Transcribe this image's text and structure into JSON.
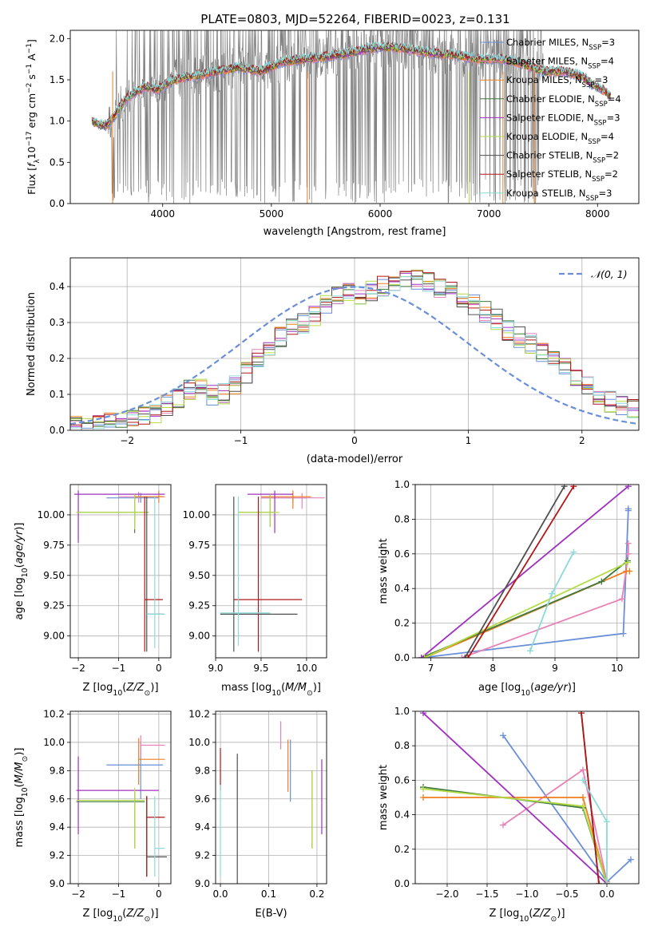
{
  "title": "PLATE=0803, MJD=52264, FIBERID=0023, z=0.131",
  "colors": {
    "cm": "#6a8fd8",
    "sm": "#e881b5",
    "km": "#f07d1e",
    "ce": "#3e7a3e",
    "se": "#a030c0",
    "ke": "#b5dc45",
    "cs": "#505050",
    "ss": "#b01818",
    "ks": "#8adada",
    "grid": "#b0b0b0",
    "noise": "#808080"
  },
  "legend": {
    "spectrum": [
      {
        "key": "cm",
        "pre": "Chabrier MILES, N",
        "sub": "SSP",
        "post": "=3"
      },
      {
        "key": "sm",
        "pre": "Salpeter MILES, N",
        "sub": "SSP",
        "post": "=4"
      },
      {
        "key": "km",
        "pre": "Kroupa MILES, N",
        "sub": "SSP",
        "post": "=3"
      },
      {
        "key": "ce",
        "pre": "Chabrier ELODIE, N",
        "sub": "SSP",
        "post": "=4"
      },
      {
        "key": "se",
        "pre": "Salpeter ELODIE, N",
        "sub": "SSP",
        "post": "=3"
      },
      {
        "key": "ke",
        "pre": "Kroupa ELODIE, N",
        "sub": "SSP",
        "post": "=4"
      },
      {
        "key": "cs",
        "pre": "Chabrier STELIB, N",
        "sub": "SSP",
        "post": "=2"
      },
      {
        "key": "ss",
        "pre": "Salpeter STELIB, N",
        "sub": "SSP",
        "post": "=2"
      },
      {
        "key": "ks",
        "pre": "Kroupa STELIB, N",
        "sub": "SSP",
        "post": "=3"
      }
    ],
    "residuals": "𝒩(0, 1)"
  },
  "chart_data": [
    {
      "type": "line",
      "name": "spectrum",
      "xlabel": "wavelength [Angstrom, rest frame]",
      "ylabel_parts": [
        "Flux [",
        "f",
        "λ",
        "10",
        "−17",
        " erg cm",
        "−2",
        " s",
        "−1",
        " A",
        "−1",
        "]"
      ],
      "xlim": [
        3150,
        8380
      ],
      "ylim": [
        0,
        2.1
      ],
      "xticks": [
        4000,
        5000,
        6000,
        7000,
        8000
      ],
      "yticks": [
        0.0,
        0.5,
        1.0,
        1.5,
        2.0
      ],
      "continuum": {
        "x": [
          3350,
          3420,
          3480,
          3550,
          3650,
          3750,
          3850,
          3950,
          4100,
          4300,
          4500,
          4700,
          4900,
          5100,
          5300,
          5500,
          5700,
          5900,
          6100,
          6300,
          6500,
          6700,
          6900,
          7100,
          7300,
          7500,
          7700,
          7850,
          7950,
          8050,
          8120
        ],
        "y": [
          1.0,
          0.95,
          0.95,
          1.05,
          1.25,
          1.35,
          1.42,
          1.38,
          1.5,
          1.55,
          1.6,
          1.65,
          1.6,
          1.72,
          1.75,
          1.78,
          1.82,
          1.88,
          1.9,
          1.86,
          1.82,
          1.8,
          1.75,
          1.75,
          1.7,
          1.6,
          1.6,
          1.55,
          1.45,
          1.38,
          1.3
        ]
      },
      "noise_range": [
        3500,
        7500
      ]
    },
    {
      "type": "bar",
      "name": "residual-histograms",
      "xlabel": "(data-model)/error",
      "ylabel": "Normed distribution",
      "xlim": [
        -2.5,
        2.5
      ],
      "ylim": [
        0,
        0.48
      ],
      "xticks": [
        -2,
        -1,
        0,
        1,
        2
      ],
      "yticks": [
        0.0,
        0.1,
        0.2,
        0.3,
        0.4
      ],
      "bin_width": 0.1,
      "base_hist": [
        0.01,
        0.01,
        0.015,
        0.02,
        0.025,
        0.03,
        0.04,
        0.05,
        0.07,
        0.09,
        0.11,
        0.12,
        0.1,
        0.1,
        0.13,
        0.16,
        0.2,
        0.23,
        0.26,
        0.28,
        0.3,
        0.32,
        0.35,
        0.37,
        0.38,
        0.38,
        0.39,
        0.4,
        0.41,
        0.42,
        0.42,
        0.41,
        0.4,
        0.39,
        0.37,
        0.35,
        0.33,
        0.31,
        0.28,
        0.26,
        0.24,
        0.22,
        0.2,
        0.18,
        0.15,
        0.12,
        0.1,
        0.08,
        0.07,
        0.06
      ],
      "gaussian": {
        "mu": 0,
        "sigma": 1
      }
    },
    {
      "type": "scatter",
      "name": "age-vs-metallicity",
      "xlabel": "Z [log10(Z/Z⊙)]",
      "ylabel": "age [log10(age/yr)]",
      "xlim": [
        -2.2,
        0.3
      ],
      "ylim": [
        8.82,
        10.25
      ],
      "xticks": [
        -2,
        -1,
        0
      ],
      "yticks": [
        9.0,
        9.25,
        9.5,
        9.75,
        10.0
      ],
      "points": [
        {
          "key": "cm",
          "x": -0.45,
          "xe": [
            -1.3,
            0.0
          ],
          "y": 10.14,
          "ye": [
            10.1,
            10.18
          ]
        },
        {
          "key": "sm",
          "x": -0.5,
          "xe": [
            -1.0,
            0.1
          ],
          "y": 10.15,
          "ye": [
            10.1,
            10.19
          ]
        },
        {
          "key": "km",
          "x": 0.0,
          "xe": [
            -0.6,
            0.15
          ],
          "y": 10.15,
          "ye": [
            10.1,
            10.2
          ]
        },
        {
          "key": "ce",
          "x": -0.6,
          "xe": [
            -2.05,
            -0.25
          ],
          "y": 10.02,
          "ye": [
            9.85,
            10.17
          ]
        },
        {
          "key": "se",
          "x": -2.0,
          "xe": [
            -2.1,
            0.15
          ],
          "y": 10.17,
          "ye": [
            9.77,
            10.2
          ]
        },
        {
          "key": "ke",
          "x": -0.6,
          "xe": [
            -2.05,
            -0.25
          ],
          "y": 10.02,
          "ye": [
            9.88,
            10.17
          ]
        },
        {
          "key": "cs",
          "x": -0.3,
          "xe": [
            -0.3,
            0.12
          ],
          "y": 9.18,
          "ye": [
            8.87,
            10.15
          ]
        },
        {
          "key": "ss",
          "x": -0.35,
          "xe": [
            -0.35,
            0.1
          ],
          "y": 9.3,
          "ye": [
            8.87,
            10.15
          ]
        },
        {
          "key": "ks",
          "x": -0.1,
          "xe": [
            -0.3,
            0.15
          ],
          "y": 9.18,
          "ye": [
            8.9,
            10.15
          ]
        }
      ]
    },
    {
      "type": "scatter",
      "name": "age-vs-mass",
      "xlabel": "mass [log10(M/M⊙)]",
      "ylabel": "",
      "xlim": [
        9.0,
        10.22
      ],
      "ylim": [
        8.82,
        10.25
      ],
      "xticks": [
        9.0,
        9.5,
        10.0
      ],
      "yticks": [
        9.0,
        9.25,
        9.5,
        9.75,
        10.0
      ],
      "points": [
        {
          "key": "cm",
          "x": 9.85,
          "xe": [
            9.5,
            10.0
          ],
          "y": 10.14,
          "ye": [
            10.1,
            10.18
          ]
        },
        {
          "key": "sm",
          "x": 9.95,
          "xe": [
            9.5,
            10.2
          ],
          "y": 10.14,
          "ye": [
            10.05,
            10.18
          ]
        },
        {
          "key": "km",
          "x": 9.85,
          "xe": [
            9.5,
            10.05
          ],
          "y": 10.15,
          "ye": [
            10.05,
            10.2
          ]
        },
        {
          "key": "ce",
          "x": 9.6,
          "xe": [
            9.25,
            9.65
          ],
          "y": 10.02,
          "ye": [
            9.9,
            10.17
          ]
        },
        {
          "key": "se",
          "x": 9.65,
          "xe": [
            9.35,
            9.85
          ],
          "y": 10.17,
          "ye": [
            9.85,
            10.2
          ]
        },
        {
          "key": "ke",
          "x": 9.6,
          "xe": [
            9.25,
            9.7
          ],
          "y": 10.02,
          "ye": [
            9.9,
            10.17
          ]
        },
        {
          "key": "cs",
          "x": 9.2,
          "xe": [
            9.05,
            9.9
          ],
          "y": 9.18,
          "ye": [
            8.87,
            10.15
          ]
        },
        {
          "key": "ss",
          "x": 9.47,
          "xe": [
            9.2,
            9.95
          ],
          "y": 9.3,
          "ye": [
            8.87,
            10.15
          ]
        },
        {
          "key": "ks",
          "x": 9.25,
          "xe": [
            9.05,
            9.6
          ],
          "y": 9.19,
          "ye": [
            8.92,
            10.15
          ]
        }
      ]
    },
    {
      "type": "line",
      "name": "cumulative-mass-weight-vs-age",
      "xlabel": "age [log10(age/yr)]",
      "ylabel": "mass weight",
      "xlim": [
        6.75,
        10.35
      ],
      "ylim": [
        0,
        1.0
      ],
      "xticks": [
        7,
        8,
        9,
        10
      ],
      "yticks": [
        0.0,
        0.2,
        0.4,
        0.6,
        0.8,
        1.0
      ],
      "series": [
        {
          "key": "cm",
          "x": [
            6.85,
            10.1,
            10.18,
            10.18
          ],
          "y": [
            0.0,
            0.14,
            0.85,
            0.86
          ]
        },
        {
          "key": "sm",
          "x": [
            7.5,
            10.08,
            10.18,
            10.18
          ],
          "y": [
            0.0,
            0.34,
            0.6,
            0.66
          ]
        },
        {
          "key": "km",
          "x": [
            6.9,
            10.15,
            10.2
          ],
          "y": [
            0.0,
            0.5,
            0.5
          ]
        },
        {
          "key": "ce",
          "x": [
            6.85,
            9.75,
            10.17
          ],
          "y": [
            0.0,
            0.44,
            0.56
          ]
        },
        {
          "key": "se",
          "x": [
            6.85,
            10.18
          ],
          "y": [
            0.0,
            0.99
          ]
        },
        {
          "key": "ke",
          "x": [
            6.9,
            10.17
          ],
          "y": [
            0.0,
            0.55
          ]
        },
        {
          "key": "cs",
          "x": [
            7.55,
            9.15
          ],
          "y": [
            0.0,
            0.99
          ]
        },
        {
          "key": "ss",
          "x": [
            7.6,
            9.3
          ],
          "y": [
            0.0,
            0.99
          ]
        },
        {
          "key": "ks",
          "x": [
            8.6,
            8.95,
            9.3
          ],
          "y": [
            0.04,
            0.37,
            0.61
          ]
        }
      ]
    },
    {
      "type": "scatter",
      "name": "mass-vs-metallicity",
      "xlabel": "Z [log10(Z/Z⊙)]",
      "ylabel": "mass [log10(M/M⊙)]",
      "xlim": [
        -2.2,
        0.3
      ],
      "ylim": [
        9.0,
        10.22
      ],
      "xticks": [
        -2,
        -1,
        0
      ],
      "yticks": [
        9.0,
        9.2,
        9.4,
        9.6,
        9.8,
        10.0,
        10.2
      ],
      "points": [
        {
          "key": "cm",
          "x": -0.45,
          "xe": [
            -1.3,
            0.1
          ],
          "y": 9.84,
          "ye": [
            9.6,
            10.0
          ]
        },
        {
          "key": "sm",
          "x": -0.45,
          "xe": [
            -0.45,
            0.15
          ],
          "y": 9.98,
          "ye": [
            9.9,
            10.05
          ]
        },
        {
          "key": "km",
          "x": -0.5,
          "xe": [
            -0.5,
            0.15
          ],
          "y": 9.88,
          "ye": [
            9.7,
            10.03
          ]
        },
        {
          "key": "ce",
          "x": -0.6,
          "xe": [
            -2.05,
            -0.35
          ],
          "y": 9.58,
          "ye": [
            9.25,
            9.65
          ]
        },
        {
          "key": "se",
          "x": -2.0,
          "xe": [
            -2.05,
            0.0
          ],
          "y": 9.66,
          "ye": [
            9.35,
            9.9
          ]
        },
        {
          "key": "ke",
          "x": -0.6,
          "xe": [
            -2.05,
            -0.35
          ],
          "y": 9.59,
          "ye": [
            9.25,
            9.68
          ]
        },
        {
          "key": "cs",
          "x": -0.3,
          "xe": [
            -0.3,
            0.2
          ],
          "y": 9.19,
          "ye": [
            9.05,
            9.62
          ]
        },
        {
          "key": "ss",
          "x": -0.3,
          "xe": [
            -0.3,
            0.15
          ],
          "y": 9.47,
          "ye": [
            9.05,
            9.62
          ]
        },
        {
          "key": "ks",
          "x": -0.1,
          "xe": [
            -0.1,
            0.15
          ],
          "y": 9.25,
          "ye": [
            9.05,
            9.62
          ]
        }
      ]
    },
    {
      "type": "scatter",
      "name": "mass-vs-extinction",
      "xlabel": "E(B-V)",
      "ylabel": "",
      "xlim": [
        -0.01,
        0.22
      ],
      "ylim": [
        9.0,
        10.22
      ],
      "xticks": [
        0.0,
        0.1,
        0.2
      ],
      "yticks": [
        9.0,
        9.2,
        9.4,
        9.6,
        9.8,
        10.0,
        10.2
      ],
      "points": [
        {
          "key": "cm",
          "x": 0.145,
          "ye": [
            9.58,
            10.02
          ]
        },
        {
          "key": "sm",
          "x": 0.125,
          "ye": [
            9.95,
            10.15
          ]
        },
        {
          "key": "km",
          "x": 0.14,
          "ye": [
            9.65,
            10.02
          ]
        },
        {
          "key": "ce",
          "x": 0.19,
          "ye": [
            9.25,
            9.8
          ]
        },
        {
          "key": "se",
          "x": 0.21,
          "ye": [
            9.35,
            9.88
          ]
        },
        {
          "key": "ke",
          "x": 0.19,
          "ye": [
            9.25,
            9.8
          ]
        },
        {
          "key": "cs",
          "x": 0.035,
          "ye": [
            9.0,
            9.92
          ]
        },
        {
          "key": "ss",
          "x": 0.0,
          "ye": [
            9.66,
            9.96
          ]
        },
        {
          "key": "ks",
          "x": 0.0,
          "ye": [
            9.05,
            9.7
          ]
        }
      ]
    },
    {
      "type": "line",
      "name": "cumulative-mass-weight-vs-metallicity",
      "xlabel": "Z [log10(Z/Z⊙)]",
      "ylabel": "mass weight",
      "xlim": [
        -2.4,
        0.4
      ],
      "ylim": [
        0,
        1.0
      ],
      "xticks": [
        -2.0,
        -1.5,
        -1.0,
        -0.5,
        0.0
      ],
      "yticks": [
        0.0,
        0.2,
        0.4,
        0.6,
        0.8,
        1.0
      ],
      "series": [
        {
          "key": "cm",
          "x": [
            -1.3,
            0.0,
            0.3
          ],
          "y": [
            0.86,
            0.01,
            0.14
          ]
        },
        {
          "key": "sm",
          "x": [
            -1.3,
            -0.3,
            0.0
          ],
          "y": [
            0.34,
            0.66,
            0.01
          ]
        },
        {
          "key": "km",
          "x": [
            -2.3,
            -0.3,
            0.0
          ],
          "y": [
            0.5,
            0.5,
            0.0
          ]
        },
        {
          "key": "ce",
          "x": [
            -2.3,
            -0.3,
            0.0
          ],
          "y": [
            0.56,
            0.44,
            0.0
          ]
        },
        {
          "key": "se",
          "x": [
            -2.3,
            0.0
          ],
          "y": [
            0.99,
            0.0
          ]
        },
        {
          "key": "ke",
          "x": [
            -2.3,
            -0.3,
            0.0
          ],
          "y": [
            0.55,
            0.45,
            0.0
          ]
        },
        {
          "key": "cs",
          "x": [
            -0.32,
            -0.1
          ],
          "y": [
            0.99,
            0.0
          ]
        },
        {
          "key": "ss",
          "x": [
            -0.32,
            -0.1
          ],
          "y": [
            0.99,
            0.0
          ]
        },
        {
          "key": "ks",
          "x": [
            -0.3,
            0.0,
            0.0
          ],
          "y": [
            0.6,
            0.36,
            0.0
          ]
        }
      ]
    }
  ]
}
